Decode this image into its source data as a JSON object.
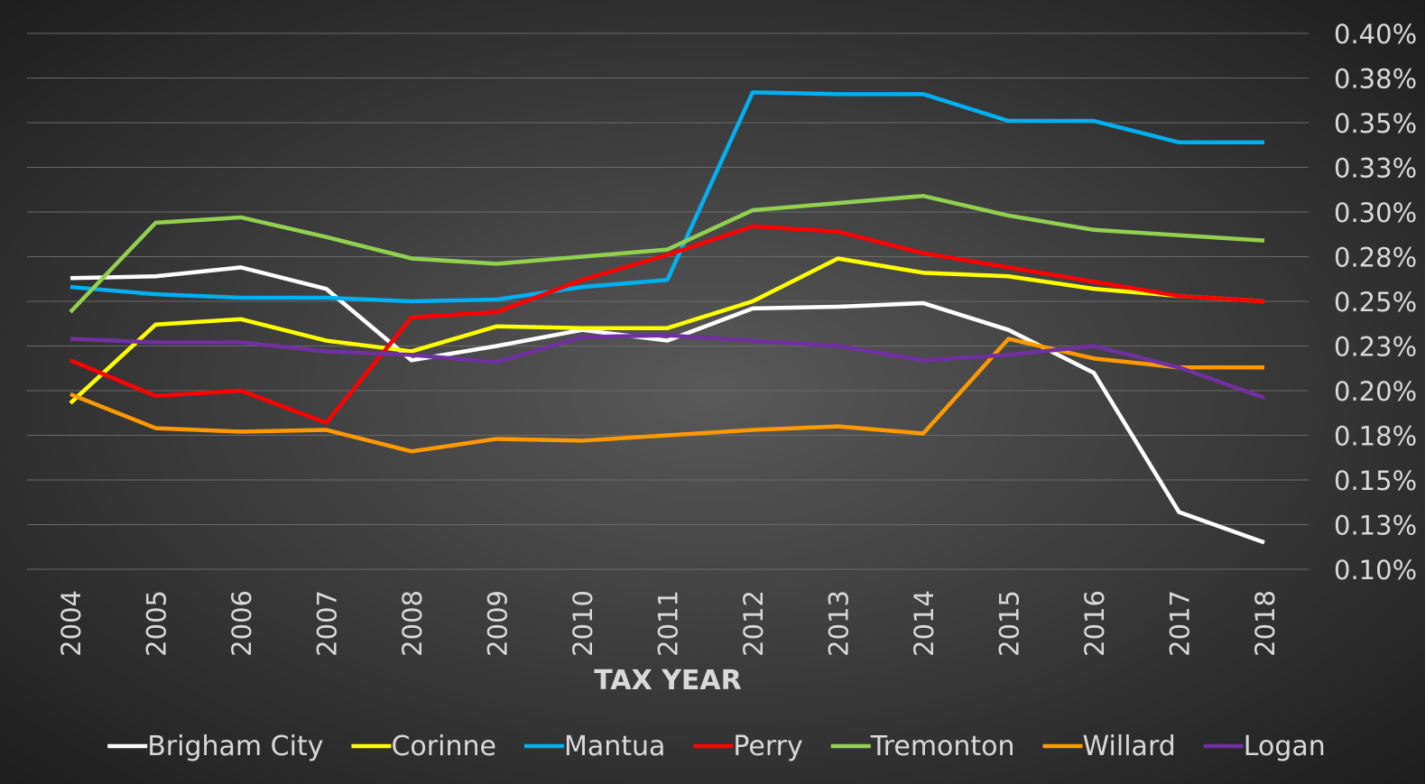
{
  "chart_data": {
    "type": "line",
    "x_label": "TAX YEAR",
    "categories": [
      "2004",
      "2005",
      "2006",
      "2007",
      "2008",
      "2009",
      "2010",
      "2011",
      "2012",
      "2013",
      "2014",
      "2015",
      "2016",
      "2017",
      "2018"
    ],
    "ylim": [
      0.1,
      0.4
    ],
    "yticks": [
      {
        "value": 0.1,
        "label": "0.10%"
      },
      {
        "value": 0.125,
        "label": "0.13%"
      },
      {
        "value": 0.15,
        "label": "0.15%"
      },
      {
        "value": 0.175,
        "label": "0.18%"
      },
      {
        "value": 0.2,
        "label": "0.20%"
      },
      {
        "value": 0.225,
        "label": "0.23%"
      },
      {
        "value": 0.25,
        "label": "0.25%"
      },
      {
        "value": 0.275,
        "label": "0.28%"
      },
      {
        "value": 0.3,
        "label": "0.30%"
      },
      {
        "value": 0.325,
        "label": "0.33%"
      },
      {
        "value": 0.35,
        "label": "0.35%"
      },
      {
        "value": 0.375,
        "label": "0.38%"
      },
      {
        "value": 0.4,
        "label": "0.40%"
      }
    ],
    "grid": true,
    "y_axis_side": "right",
    "legend": "bottom",
    "series": [
      {
        "name": "Brigham City",
        "color": "#ffffff",
        "values": [
          0.263,
          0.264,
          0.269,
          0.257,
          0.217,
          0.225,
          0.234,
          0.228,
          0.246,
          0.247,
          0.249,
          0.234,
          0.21,
          0.132,
          0.115
        ]
      },
      {
        "name": "Corinne",
        "color": "#ffff00",
        "values": [
          0.193,
          0.237,
          0.24,
          0.228,
          0.222,
          0.236,
          0.235,
          0.235,
          0.25,
          0.274,
          0.266,
          0.264,
          0.257,
          0.253,
          0.25
        ]
      },
      {
        "name": "Mantua",
        "color": "#00b0f0",
        "values": [
          0.258,
          0.254,
          0.252,
          0.252,
          0.25,
          0.251,
          0.258,
          0.262,
          0.367,
          0.366,
          0.366,
          0.351,
          0.351,
          0.339,
          0.339
        ]
      },
      {
        "name": "Perry",
        "color": "#ff0000",
        "values": [
          0.217,
          0.197,
          0.2,
          0.182,
          0.241,
          0.244,
          0.262,
          0.276,
          0.292,
          0.289,
          0.277,
          0.269,
          0.261,
          0.253,
          0.25
        ]
      },
      {
        "name": "Tremonton",
        "color": "#92d050",
        "values": [
          0.244,
          0.294,
          0.297,
          0.286,
          0.274,
          0.271,
          0.275,
          0.279,
          0.301,
          0.305,
          0.309,
          0.298,
          0.29,
          0.287,
          0.284
        ]
      },
      {
        "name": "Willard",
        "color": "#ff9900",
        "values": [
          0.198,
          0.179,
          0.177,
          0.178,
          0.166,
          0.173,
          0.172,
          0.175,
          0.178,
          0.18,
          0.176,
          0.229,
          0.218,
          0.213,
          0.213
        ]
      },
      {
        "name": "Logan",
        "color": "#7030a0",
        "values": [
          0.229,
          0.227,
          0.227,
          0.222,
          0.22,
          0.216,
          0.23,
          0.231,
          0.228,
          0.225,
          0.217,
          0.22,
          0.225,
          0.213,
          0.196
        ]
      }
    ]
  }
}
